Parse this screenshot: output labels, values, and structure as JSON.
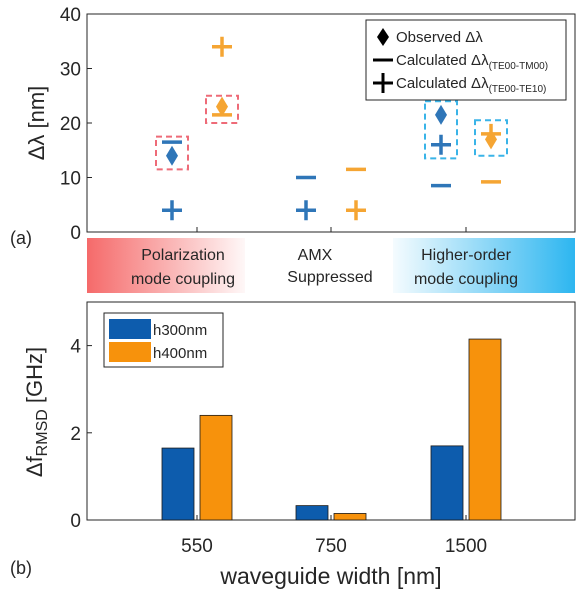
{
  "chart_data": [
    {
      "type": "scatter",
      "panel_label": "(a)",
      "ylabel": "Δλ [nm]",
      "ylim": [
        0,
        40
      ],
      "yticks": [
        0,
        10,
        20,
        30,
        40
      ],
      "categories": [
        "550",
        "750",
        "1500"
      ],
      "grid": false,
      "legend_position": "top-right",
      "legend": {
        "observed": "Observed Δλ",
        "calc_tm_prefix": "Calculated Δλ",
        "calc_tm_sub": "(TE00-TM00)",
        "calc_te_prefix": "Calculated Δλ",
        "calc_te_sub": "(TE00-TE10)"
      },
      "series": [
        {
          "name": "Observed Δλ",
          "marker": "diamond",
          "h300nm": [
            14,
            null,
            21.5
          ],
          "h400nm": [
            23,
            null,
            17
          ]
        },
        {
          "name": "Calculated Δλ(TE00-TM00)",
          "marker": "dash",
          "h300nm": [
            16.5,
            10,
            8.5
          ],
          "h400nm": [
            21.5,
            11.5,
            9.2
          ]
        },
        {
          "name": "Calculated Δλ(TE00-TE10)",
          "marker": "plus",
          "h300nm": [
            4,
            4,
            16
          ],
          "h400nm": [
            34,
            4,
            18
          ]
        }
      ],
      "highlight_boxes": [
        {
          "category": "550",
          "height": "h300nm",
          "y_range": [
            11.5,
            17.5
          ],
          "color": "#ee6b78"
        },
        {
          "category": "550",
          "height": "h400nm",
          "y_range": [
            20,
            25
          ],
          "color": "#ee6b78"
        },
        {
          "category": "1500",
          "height": "h300nm",
          "y_range": [
            13.5,
            24
          ],
          "color": "#3ab4e8"
        },
        {
          "category": "1500",
          "height": "h400nm",
          "y_range": [
            14,
            20.5
          ],
          "color": "#3ab4e8"
        }
      ]
    },
    {
      "type": "bar",
      "panel_label": "(b)",
      "ylabel": "Δf",
      "ylabel_sub": "RMSD",
      "ylabel_unit": " [GHz]",
      "xlabel": "waveguide width [nm]",
      "categories": [
        "550",
        "750",
        "1500"
      ],
      "ylim": [
        0,
        5
      ],
      "yticks": [
        0,
        2,
        4
      ],
      "grid": false,
      "legend_position": "top-left",
      "series": [
        {
          "name": "h300nm",
          "values": [
            1.65,
            0.33,
            1.7
          ],
          "color": "#0d5cad"
        },
        {
          "name": "h400nm",
          "values": [
            2.4,
            0.15,
            4.15
          ],
          "color": "#f7920c"
        }
      ]
    }
  ],
  "bands": [
    {
      "line1": "Polarization",
      "line2": "mode coupling"
    },
    {
      "line1": "AMX",
      "line2": "Suppressed"
    },
    {
      "line1": "Higher-order",
      "line2": "mode coupling"
    }
  ],
  "colors": {
    "h300": "#2f76b8",
    "h400": "#f5a533",
    "bar_h300": "#0d5cad",
    "bar_h400": "#f7920c",
    "band_red": "#f56a6a",
    "band_blue": "#2db6f0",
    "box_red": "#ee6b78",
    "box_blue": "#3ab4e8"
  }
}
